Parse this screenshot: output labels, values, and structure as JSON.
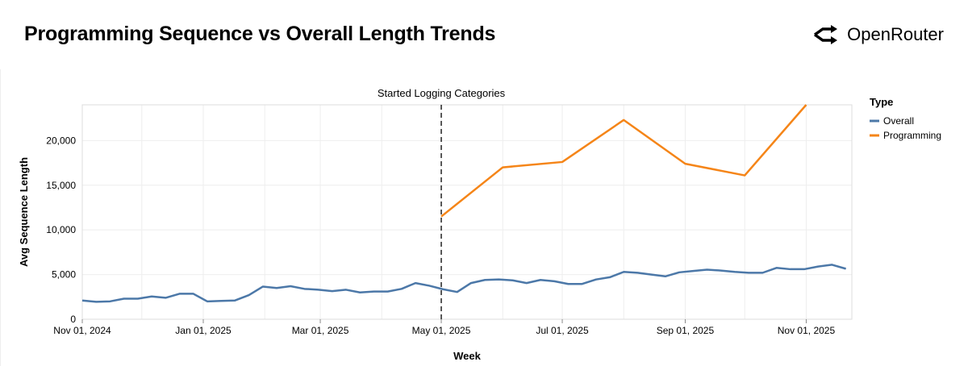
{
  "header": {
    "title": "Programming Sequence vs Overall Length Trends",
    "brand": "OpenRouter"
  },
  "colors": {
    "Overall": "#4c78a8",
    "Programming": "#f58518"
  },
  "chart_data": {
    "type": "line",
    "xlabel": "Week",
    "ylabel": "Avg Sequence Length",
    "xlim": [
      "2024-11-01",
      "2025-11-24"
    ],
    "ylim": [
      0,
      24000
    ],
    "x_ticks": [
      {
        "date": "2024-11-01",
        "label": "Nov 01, 2024"
      },
      {
        "date": "2025-01-01",
        "label": "Jan 01, 2025"
      },
      {
        "date": "2025-03-01",
        "label": "Mar 01, 2025"
      },
      {
        "date": "2025-05-01",
        "label": "May 01, 2025"
      },
      {
        "date": "2025-07-01",
        "label": "Jul 01, 2025"
      },
      {
        "date": "2025-09-01",
        "label": "Sep 01, 2025"
      },
      {
        "date": "2025-11-01",
        "label": "Nov 01, 2025"
      }
    ],
    "y_ticks": [
      {
        "value": 0,
        "label": "0"
      },
      {
        "value": 5000,
        "label": "5,000"
      },
      {
        "value": 10000,
        "label": "10,000"
      },
      {
        "value": 15000,
        "label": "15,000"
      },
      {
        "value": 20000,
        "label": "20,000"
      }
    ],
    "grid": true,
    "legend": {
      "title": "Type",
      "position": "right"
    },
    "annotation": {
      "date": "2025-05-01",
      "label": "Started Logging Categories",
      "style": "dashed"
    },
    "series": [
      {
        "name": "Overall",
        "x": [
          "2024-11-01",
          "2024-11-08",
          "2024-11-15",
          "2024-11-22",
          "2024-11-29",
          "2024-12-06",
          "2024-12-13",
          "2024-12-20",
          "2024-12-27",
          "2025-01-03",
          "2025-01-10",
          "2025-01-17",
          "2025-01-24",
          "2025-01-31",
          "2025-02-07",
          "2025-02-14",
          "2025-02-21",
          "2025-02-28",
          "2025-03-07",
          "2025-03-14",
          "2025-03-21",
          "2025-03-28",
          "2025-04-04",
          "2025-04-11",
          "2025-04-18",
          "2025-04-25",
          "2025-05-02",
          "2025-05-09",
          "2025-05-16",
          "2025-05-23",
          "2025-05-30",
          "2025-06-06",
          "2025-06-13",
          "2025-06-20",
          "2025-06-27",
          "2025-07-04",
          "2025-07-11",
          "2025-07-18",
          "2025-07-25",
          "2025-08-01",
          "2025-08-08",
          "2025-08-15",
          "2025-08-22",
          "2025-08-29",
          "2025-09-05",
          "2025-09-12",
          "2025-09-19",
          "2025-09-26",
          "2025-10-03",
          "2025-10-10",
          "2025-10-17",
          "2025-10-24",
          "2025-10-31",
          "2025-11-07",
          "2025-11-14",
          "2025-11-21"
        ],
        "values": [
          2100,
          1950,
          2000,
          2300,
          2300,
          2550,
          2400,
          2850,
          2850,
          2000,
          2050,
          2100,
          2700,
          3650,
          3500,
          3700,
          3400,
          3300,
          3150,
          3300,
          3000,
          3100,
          3100,
          3400,
          4050,
          3750,
          3350,
          3050,
          4050,
          4400,
          4450,
          4350,
          4050,
          4400,
          4250,
          3950,
          3950,
          4450,
          4700,
          5300,
          5200,
          5000,
          4800,
          5250,
          5400,
          5550,
          5450,
          5300,
          5200,
          5200,
          5750,
          5600,
          5600,
          5900,
          6100,
          5650
        ]
      },
      {
        "name": "Programming",
        "x": [
          "2025-05-01",
          "2025-06-01",
          "2025-07-01",
          "2025-08-01",
          "2025-09-01",
          "2025-10-01",
          "2025-11-01"
        ],
        "values": [
          11500,
          17000,
          17600,
          22300,
          17400,
          16100,
          24000
        ]
      }
    ]
  }
}
